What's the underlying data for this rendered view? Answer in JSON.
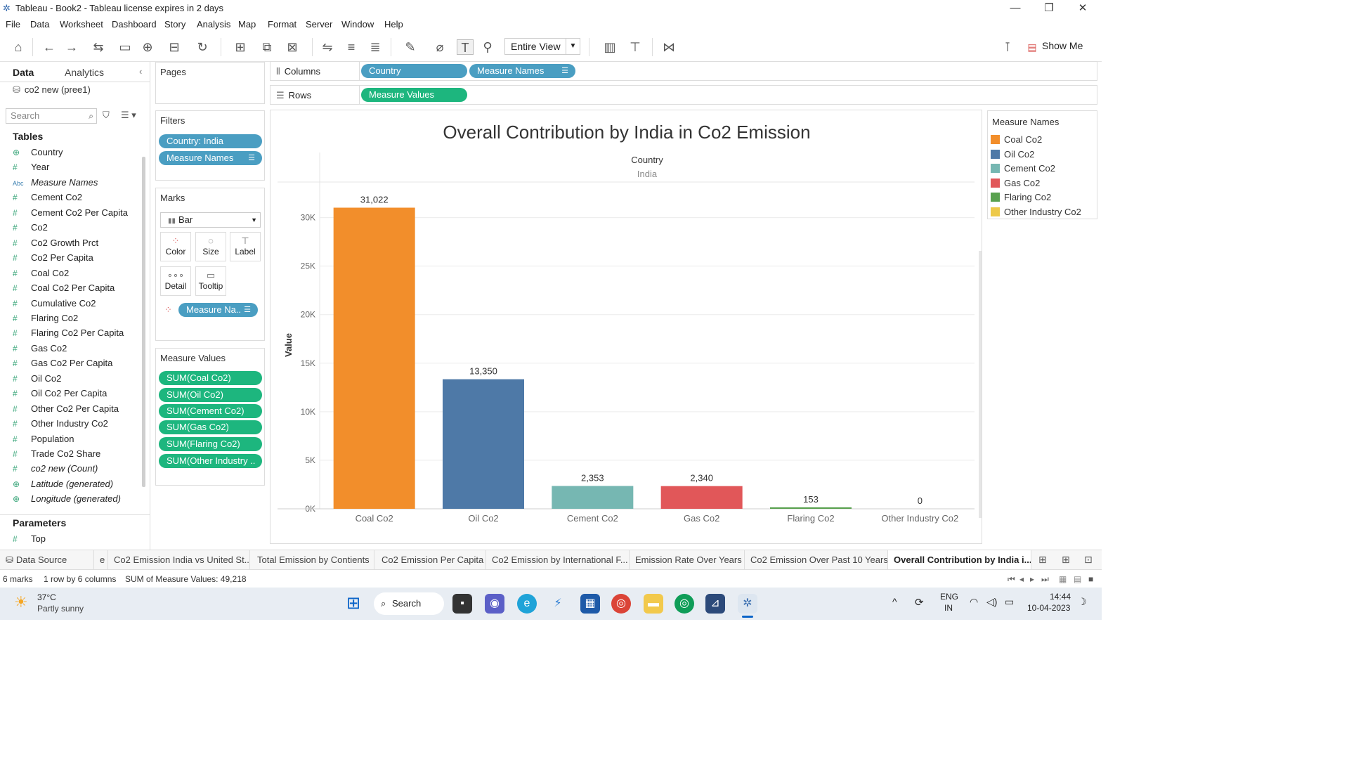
{
  "window": {
    "title": "Tableau - Book2 - Tableau license expires in 2 days"
  },
  "menu": [
    "File",
    "Data",
    "Worksheet",
    "Dashboard",
    "Story",
    "Analysis",
    "Map",
    "Format",
    "Server",
    "Window",
    "Help"
  ],
  "toolbar": {
    "fit": "Entire View",
    "show_me": "Show Me"
  },
  "data_pane": {
    "tabs": [
      "Data",
      "Analytics"
    ],
    "datasource": "co2 new (pree1)",
    "search_placeholder": "Search",
    "tables_label": "Tables",
    "fields": [
      {
        "name": "Country",
        "icon": "globe"
      },
      {
        "name": "Year",
        "icon": "hash"
      },
      {
        "name": "Measure Names",
        "icon": "abc",
        "italic": true
      },
      {
        "name": "Cement Co2",
        "icon": "hash"
      },
      {
        "name": "Cement Co2 Per Capita",
        "icon": "hash"
      },
      {
        "name": "Co2",
        "icon": "hash"
      },
      {
        "name": "Co2 Growth Prct",
        "icon": "hash"
      },
      {
        "name": "Co2 Per Capita",
        "icon": "hash"
      },
      {
        "name": "Coal Co2",
        "icon": "hash"
      },
      {
        "name": "Coal Co2 Per Capita",
        "icon": "hash"
      },
      {
        "name": "Cumulative Co2",
        "icon": "hash"
      },
      {
        "name": "Flaring Co2",
        "icon": "hash"
      },
      {
        "name": "Flaring Co2 Per Capita",
        "icon": "hash"
      },
      {
        "name": "Gas Co2",
        "icon": "hash"
      },
      {
        "name": "Gas Co2 Per Capita",
        "icon": "hash"
      },
      {
        "name": "Oil Co2",
        "icon": "hash"
      },
      {
        "name": "Oil Co2 Per Capita",
        "icon": "hash"
      },
      {
        "name": "Other Co2 Per Capita",
        "icon": "hash"
      },
      {
        "name": "Other Industry Co2",
        "icon": "hash"
      },
      {
        "name": "Population",
        "icon": "hash"
      },
      {
        "name": "Trade Co2 Share",
        "icon": "hash"
      },
      {
        "name": "co2 new (Count)",
        "icon": "hash",
        "italic": true
      },
      {
        "name": "Latitude (generated)",
        "icon": "globe",
        "italic": true
      },
      {
        "name": "Longitude (generated)",
        "icon": "globe",
        "italic": true
      }
    ],
    "parameters_label": "Parameters",
    "parameters": [
      {
        "name": "Top",
        "icon": "hash"
      }
    ]
  },
  "cards": {
    "pages": "Pages",
    "filters": {
      "title": "Filters",
      "items": [
        "Country: India",
        "Measure Names"
      ]
    },
    "marks": {
      "title": "Marks",
      "type": "Bar",
      "buttons": [
        "Color",
        "Size",
        "Label",
        "Detail",
        "Tooltip"
      ],
      "pill": "Measure Na.."
    },
    "measure_values": {
      "title": "Measure Values",
      "items": [
        "SUM(Coal Co2)",
        "SUM(Oil Co2)",
        "SUM(Cement Co2)",
        "SUM(Gas Co2)",
        "SUM(Flaring Co2)",
        "SUM(Other Industry .."
      ]
    }
  },
  "shelves": {
    "columns_label": "Columns",
    "columns": [
      "Country",
      "Measure Names"
    ],
    "rows_label": "Rows",
    "rows": [
      "Measure Values"
    ]
  },
  "chart_data": {
    "type": "bar",
    "title": "Overall Contribution by India in Co2 Emission",
    "header_field": "Country",
    "header_value": "India",
    "ylabel": "Value",
    "ylim": [
      0,
      31022
    ],
    "yticks": [
      0,
      5000,
      10000,
      15000,
      20000,
      25000,
      30000
    ],
    "ytick_labels": [
      "0K",
      "5K",
      "10K",
      "15K",
      "20K",
      "25K",
      "30K"
    ],
    "categories": [
      "Coal Co2",
      "Oil Co2",
      "Cement Co2",
      "Gas Co2",
      "Flaring Co2",
      "Other Industry Co2"
    ],
    "values": [
      31022,
      13350,
      2353,
      2340,
      153,
      0
    ],
    "data_labels": [
      "31,022",
      "13,350",
      "2,353",
      "2,340",
      "153",
      "0"
    ],
    "colors": [
      "#f28e2b",
      "#4e79a7",
      "#76b7b2",
      "#e15759",
      "#59a14f",
      "#edc948"
    ],
    "grid": true,
    "legend": {
      "title": "Measure Names",
      "placement": "right",
      "items": [
        "Coal Co2",
        "Oil Co2",
        "Cement Co2",
        "Gas Co2",
        "Flaring Co2",
        "Other Industry Co2"
      ]
    }
  },
  "sheet_tabs": {
    "datasource": "Data Source",
    "tabs": [
      "e",
      "Co2 Emission India vs United St...",
      "Total Emission by Contients",
      "Co2 Emission Per Capita",
      "Co2 Emission by International F...",
      "Emission Rate Over Years",
      "Co2 Emission  Over Past 10 Years",
      "Overall Contribution by India i..."
    ],
    "active": 7
  },
  "status": {
    "marks": "6 marks",
    "dims": "1 row by 6 columns",
    "sum": "SUM of Measure Values: 49,218"
  },
  "taskbar": {
    "weather_temp": "37°C",
    "weather_desc": "Partly sunny",
    "search": "Search",
    "lang1": "ENG",
    "lang2": "IN",
    "time": "14:44",
    "date": "10-04-2023"
  }
}
